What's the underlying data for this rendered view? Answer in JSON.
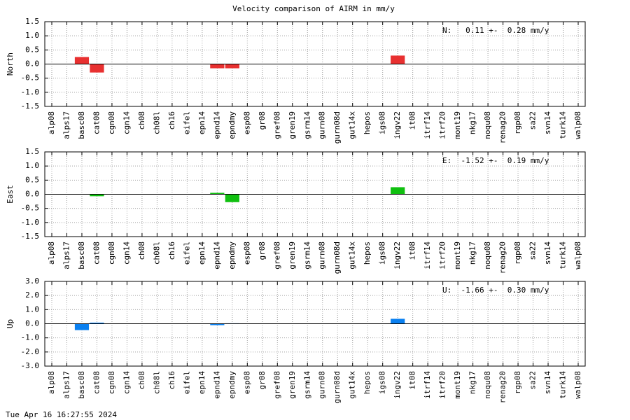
{
  "title": "Velocity comparison of AIRM in mm/y",
  "footer": "Tue Apr 16 16:27:55 2024",
  "chart_data": [
    {
      "type": "bar",
      "ylabel": "North",
      "annotation": "N:   0.11 +-  0.28 mm/y",
      "color": "#e83030",
      "grid": true,
      "categories": [
        "alp08",
        "alps17",
        "basc08",
        "cat08",
        "cgn08",
        "cgn14",
        "ch08",
        "ch08l",
        "ch16",
        "eifel",
        "epn14",
        "epnd14",
        "epndmy",
        "esp08",
        "gr08",
        "gref08",
        "gren19",
        "gsrm14",
        "gurn08",
        "gurn08d",
        "gut14x",
        "hepos",
        "igs08",
        "ingv22",
        "it08",
        "itrf14",
        "itrf20",
        "mont19",
        "nkg17",
        "noqu08",
        "renag20",
        "rgp08",
        "sa22",
        "svn14",
        "turk14",
        "walp08"
      ],
      "values": [
        null,
        null,
        0.25,
        -0.3,
        null,
        null,
        null,
        null,
        null,
        null,
        null,
        -0.15,
        -0.15,
        null,
        null,
        null,
        null,
        null,
        null,
        null,
        null,
        null,
        null,
        0.3,
        null,
        null,
        null,
        null,
        null,
        null,
        null,
        null,
        null,
        null,
        null,
        null
      ],
      "ylim": [
        -1.5,
        1.5
      ],
      "yticks": [
        -1.5,
        {
          "value": -1,
          "label": "-1.0"
        },
        -0.5,
        {
          "value": 0,
          "label": "0.0"
        },
        0.5,
        {
          "value": 1,
          "label": "1.0"
        },
        1.5
      ]
    },
    {
      "type": "bar",
      "ylabel": "East",
      "annotation": "E:  -1.52 +-  0.19 mm/y",
      "color": "#10c010",
      "grid": true,
      "categories": [
        "alp08",
        "alps17",
        "basc08",
        "cat08",
        "cgn08",
        "cgn14",
        "ch08",
        "ch08l",
        "ch16",
        "eifel",
        "epn14",
        "epnd14",
        "epndmy",
        "esp08",
        "gr08",
        "gref08",
        "gren19",
        "gsrm14",
        "gurn08",
        "gurn08d",
        "gut14x",
        "hepos",
        "igs08",
        "ingv22",
        "it08",
        "itrf14",
        "itrf20",
        "mont19",
        "nkg17",
        "noqu08",
        "renag20",
        "rgp08",
        "sa22",
        "svn14",
        "turk14",
        "walp08"
      ],
      "values": [
        null,
        null,
        null,
        -0.07,
        null,
        null,
        null,
        null,
        null,
        null,
        null,
        0.05,
        -0.28,
        null,
        null,
        null,
        null,
        null,
        null,
        null,
        null,
        null,
        null,
        0.25,
        null,
        null,
        null,
        null,
        null,
        null,
        null,
        null,
        null,
        null,
        null,
        null
      ],
      "ylim": [
        -1.5,
        1.5
      ],
      "yticks": [
        -1.5,
        {
          "value": -1,
          "label": "-1.0"
        },
        -0.5,
        {
          "value": 0,
          "label": "0.0"
        },
        0.5,
        {
          "value": 1,
          "label": "1.0"
        },
        1.5
      ]
    },
    {
      "type": "bar",
      "ylabel": "Up",
      "annotation": "U:  -1.66 +-  0.30 mm/y",
      "color": "#0a80f0",
      "grid": true,
      "categories": [
        "alp08",
        "alps17",
        "basc08",
        "cat08",
        "cgn08",
        "cgn14",
        "ch08",
        "ch08l",
        "ch16",
        "eifel",
        "epn14",
        "epnd14",
        "epndmy",
        "esp08",
        "gr08",
        "gref08",
        "gren19",
        "gsrm14",
        "gurn08",
        "gurn08d",
        "gut14x",
        "hepos",
        "igs08",
        "ingv22",
        "it08",
        "itrf14",
        "itrf20",
        "mont19",
        "nkg17",
        "noqu08",
        "renag20",
        "rgp08",
        "sa22",
        "svn14",
        "turk14",
        "walp08"
      ],
      "values": [
        null,
        null,
        -0.45,
        0.08,
        null,
        null,
        null,
        null,
        null,
        null,
        null,
        -0.1,
        0.03,
        null,
        null,
        null,
        null,
        null,
        null,
        null,
        null,
        null,
        null,
        0.35,
        null,
        null,
        null,
        null,
        null,
        null,
        null,
        null,
        null,
        null,
        null,
        null
      ],
      "ylim": [
        -3,
        3
      ],
      "yticks": [
        {
          "value": -3,
          "label": "-3.0"
        },
        {
          "value": -2,
          "label": "-2.0"
        },
        {
          "value": -1,
          "label": "-1.0"
        },
        {
          "value": 0,
          "label": "0.0"
        },
        {
          "value": 1,
          "label": "1.0"
        },
        {
          "value": 2,
          "label": "2.0"
        },
        {
          "value": 3,
          "label": "3.0"
        }
      ]
    }
  ]
}
